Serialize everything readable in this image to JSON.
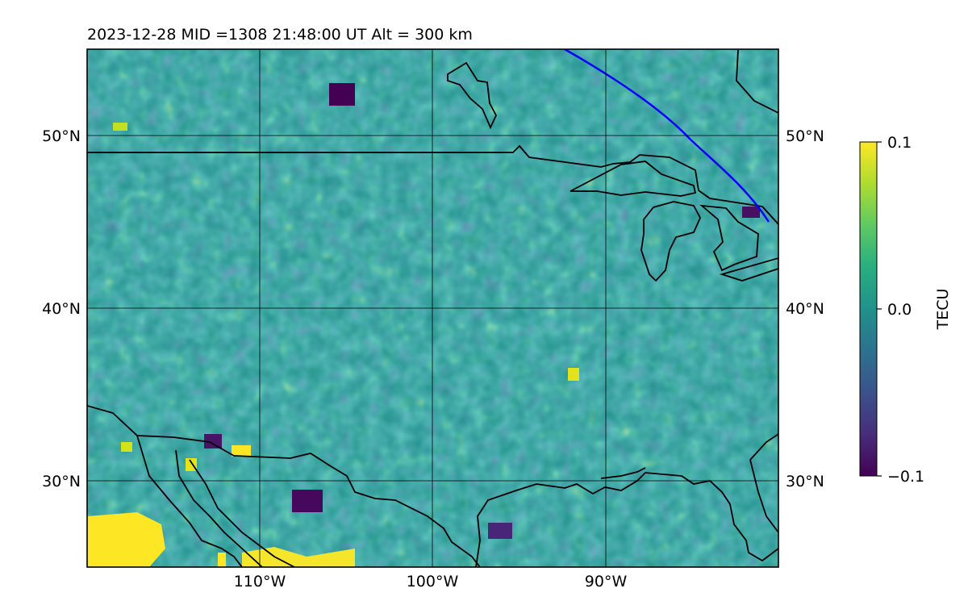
{
  "title": "2023-12-28  MID =1308    21:48:00  UT  Alt = 300 km",
  "map": {
    "lat_labels_left": [
      "50°N",
      "40°N",
      "30°N"
    ],
    "lat_labels_right": [
      "50°N",
      "40°N",
      "30°N"
    ],
    "lon_labels": [
      "110°W",
      "100°W",
      "90°W"
    ],
    "lat_range": [
      25,
      55
    ],
    "lon_range": [
      -120,
      -80
    ],
    "satellite_track_color": "#0000ff",
    "coastline_color": "#000000"
  },
  "colorbar": {
    "label": "TECU",
    "ticks": [
      "0.1",
      "0.0",
      "−0.1"
    ],
    "range": [
      -0.1,
      0.1
    ],
    "colormap": "viridis"
  }
}
